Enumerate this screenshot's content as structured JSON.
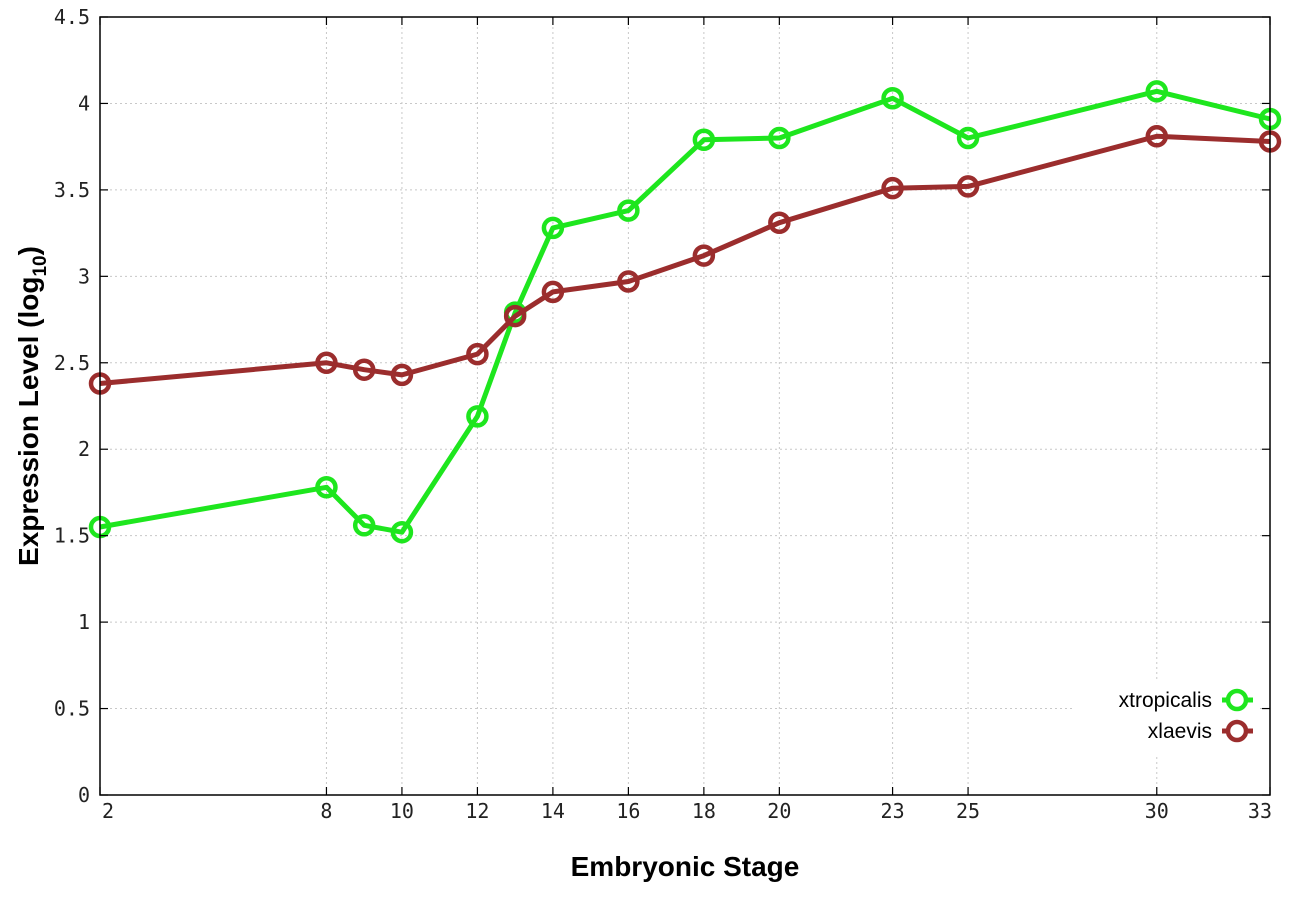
{
  "chart_data": {
    "type": "line",
    "xlabel": "Embryonic Stage",
    "ylabel": "Expression Level (log",
    "ylabel_subscript": "10",
    "ylabel_suffix": ")",
    "x": [
      2,
      8,
      9,
      10,
      12,
      13,
      14,
      16,
      18,
      20,
      23,
      25,
      30,
      33
    ],
    "x_tick_labels": [
      "2",
      "8",
      "10",
      "12",
      "14",
      "16",
      "18",
      "20",
      "23",
      "25",
      "30",
      "33"
    ],
    "x_tick_values": [
      2,
      8,
      10,
      12,
      14,
      16,
      18,
      20,
      23,
      25,
      30,
      33
    ],
    "y_tick_labels": [
      "0",
      "0.5",
      "1",
      "1.5",
      "2",
      "2.5",
      "3",
      "3.5",
      "4",
      "4.5"
    ],
    "y_tick_values": [
      0,
      0.5,
      1,
      1.5,
      2,
      2.5,
      3,
      3.5,
      4,
      4.5
    ],
    "xlim": [
      2,
      33
    ],
    "ylim": [
      0,
      4.5
    ],
    "grid": true,
    "legend_position": "bottom-right",
    "series": [
      {
        "name": "xtropicalis",
        "color": "#1ee61e",
        "values": [
          1.55,
          1.78,
          1.56,
          1.52,
          2.19,
          2.79,
          3.28,
          3.38,
          3.79,
          3.8,
          4.03,
          3.8,
          4.07,
          3.91
        ]
      },
      {
        "name": "xlaevis",
        "color": "#9b2d2d",
        "values": [
          2.38,
          2.5,
          2.46,
          2.43,
          2.55,
          2.77,
          2.91,
          2.97,
          3.12,
          3.31,
          3.51,
          3.52,
          3.81,
          3.78
        ]
      }
    ]
  }
}
